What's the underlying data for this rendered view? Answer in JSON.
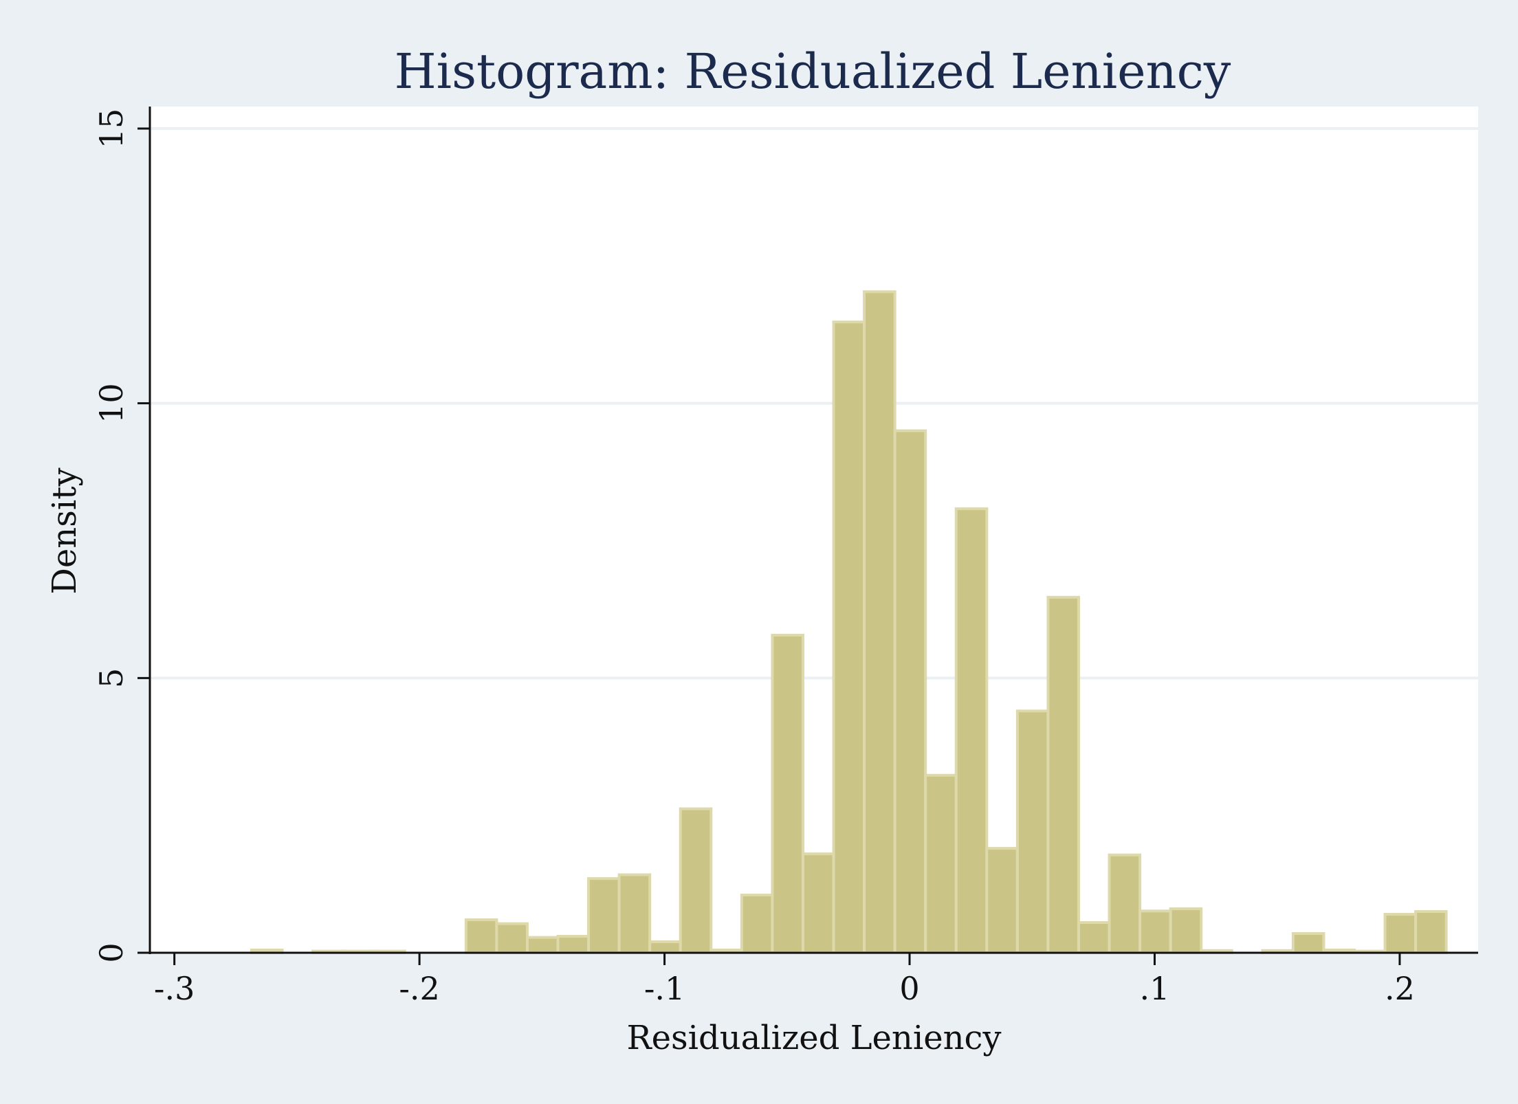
{
  "chart_data": {
    "type": "bar",
    "title": "Histogram: Residualized Leniency",
    "xlabel": "Residualized Leniency",
    "ylabel": "Density",
    "xlim": [
      -0.31,
      0.232
    ],
    "ylim": [
      0,
      15.4
    ],
    "xticks": [
      -0.3,
      -0.2,
      -0.1,
      0,
      0.1,
      0.2
    ],
    "xtick_labels": [
      "-.3",
      "-.2",
      "-.1",
      "0",
      ".1",
      ".2"
    ],
    "yticks": [
      0,
      5,
      10,
      15
    ],
    "ytick_labels": [
      "0",
      "5",
      "10",
      "15"
    ],
    "grid": true,
    "bar_color": "#cbc487",
    "bar_edge_color": "#ddd9ab",
    "bin_width": 0.0125,
    "bins": [
      {
        "x0": -0.2685,
        "height": 0.05
      },
      {
        "x0": -0.2435,
        "height": 0.03
      },
      {
        "x0": -0.231,
        "height": 0.03
      },
      {
        "x0": -0.2185,
        "height": 0.03
      },
      {
        "x0": -0.181,
        "height": 0.6
      },
      {
        "x0": -0.1685,
        "height": 0.53
      },
      {
        "x0": -0.156,
        "height": 0.28
      },
      {
        "x0": -0.1435,
        "height": 0.3
      },
      {
        "x0": -0.131,
        "height": 1.35
      },
      {
        "x0": -0.1185,
        "height": 1.42
      },
      {
        "x0": -0.106,
        "height": 0.2
      },
      {
        "x0": -0.0935,
        "height": 2.62
      },
      {
        "x0": -0.081,
        "height": 0.05
      },
      {
        "x0": -0.0685,
        "height": 1.05
      },
      {
        "x0": -0.056,
        "height": 5.78
      },
      {
        "x0": -0.0435,
        "height": 1.8
      },
      {
        "x0": -0.031,
        "height": 11.48
      },
      {
        "x0": -0.0185,
        "height": 12.03
      },
      {
        "x0": -0.006,
        "height": 9.5
      },
      {
        "x0": 0.0065,
        "height": 3.23
      },
      {
        "x0": 0.019,
        "height": 8.08
      },
      {
        "x0": 0.0315,
        "height": 1.9
      },
      {
        "x0": 0.044,
        "height": 4.4
      },
      {
        "x0": 0.0565,
        "height": 6.47
      },
      {
        "x0": 0.069,
        "height": 0.55
      },
      {
        "x0": 0.0815,
        "height": 1.78
      },
      {
        "x0": 0.094,
        "height": 0.76
      },
      {
        "x0": 0.1065,
        "height": 0.8
      },
      {
        "x0": 0.119,
        "height": 0.04
      },
      {
        "x0": 0.144,
        "height": 0.04
      },
      {
        "x0": 0.1565,
        "height": 0.35
      },
      {
        "x0": 0.169,
        "height": 0.05
      },
      {
        "x0": 0.1815,
        "height": 0.03
      },
      {
        "x0": 0.194,
        "height": 0.7
      },
      {
        "x0": 0.2065,
        "height": 0.75
      }
    ]
  }
}
